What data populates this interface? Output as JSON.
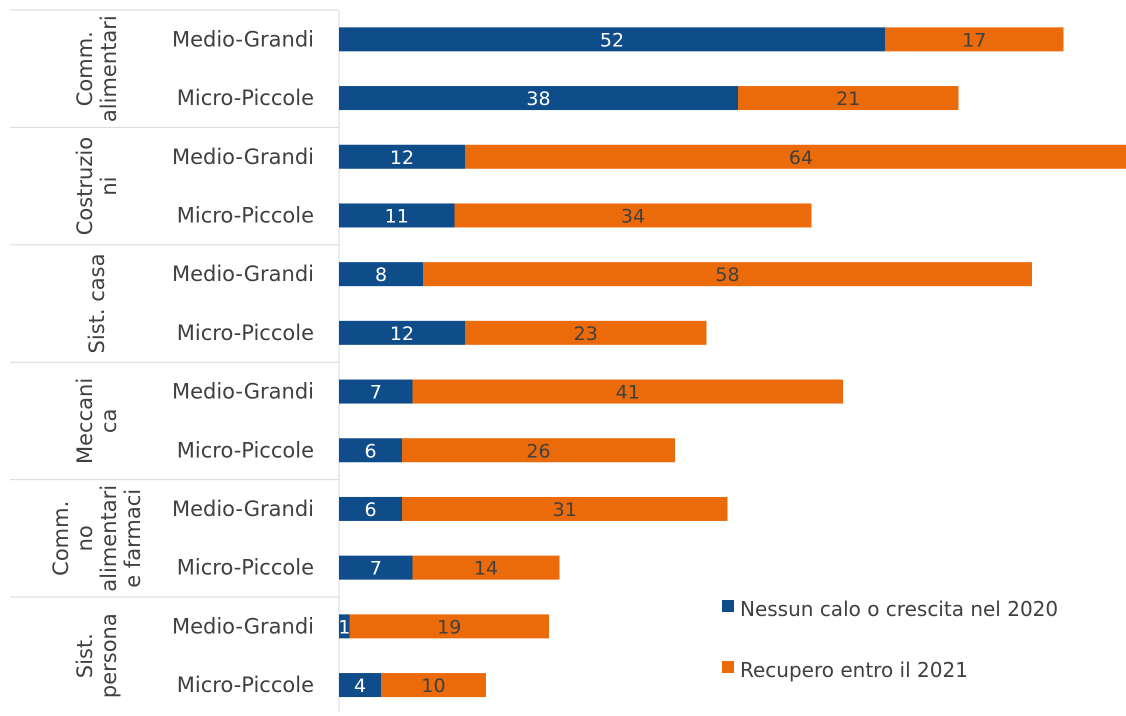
{
  "chart_data": {
    "type": "bar",
    "orientation": "horizontal",
    "stacked": true,
    "groups": [
      {
        "label": [
          "Comm.",
          "alimentari"
        ],
        "categories": [
          "Medio-Grandi",
          "Micro-Piccole"
        ]
      },
      {
        "label": [
          "Costruzio",
          "ni"
        ],
        "categories": [
          "Medio-Grandi",
          "Micro-Piccole"
        ]
      },
      {
        "label": [
          "Sist. casa"
        ],
        "categories": [
          "Medio-Grandi",
          "Micro-Piccole"
        ]
      },
      {
        "label": [
          "Meccani",
          "ca"
        ],
        "categories": [
          "Medio-Grandi",
          "Micro-Piccole"
        ]
      },
      {
        "label": [
          "Comm.",
          "no",
          "alimentari",
          "e farmaci"
        ],
        "categories": [
          "Medio-Grandi",
          "Micro-Piccole"
        ]
      },
      {
        "label": [
          "Sist.",
          "persona"
        ],
        "categories": [
          "Medio-Grandi",
          "Micro-Piccole"
        ]
      }
    ],
    "series": [
      {
        "name": "Nessun calo o crescita nel 2020",
        "color": "#0F4C8A",
        "values": [
          52,
          38,
          12,
          11,
          8,
          12,
          7,
          6,
          6,
          7,
          1,
          4
        ]
      },
      {
        "name": "Recupero entro il 2021",
        "color": "#EB6A0A",
        "values": [
          17,
          21,
          64,
          34,
          58,
          23,
          41,
          26,
          31,
          14,
          19,
          10
        ]
      }
    ],
    "xlim": [
      0,
      75
    ],
    "grid": false,
    "legend_position": "bottom-right",
    "data_labels": true
  }
}
